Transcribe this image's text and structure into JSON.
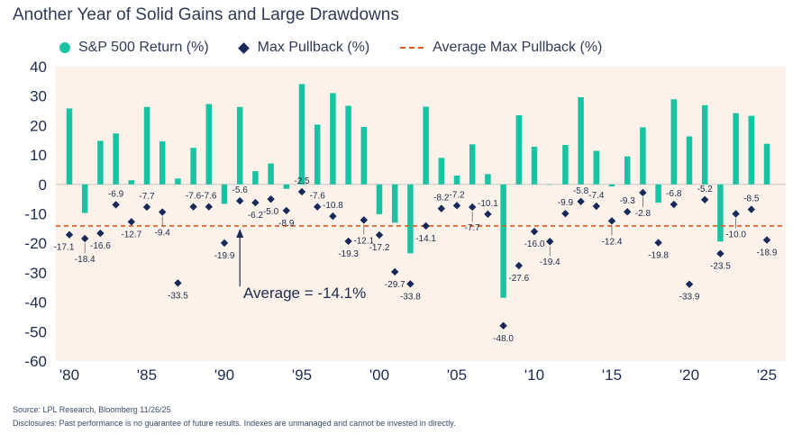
{
  "title": "Another Year of Solid Gains and Large Drawdowns",
  "legend": {
    "returns": "S&P 500 Return (%)",
    "pullback": "Max Pullback (%)",
    "average": "Average Max Pullback (%)"
  },
  "source": "Source: LPL Research, Bloomberg 11/26/25",
  "disclosure": "Disclosures: Past performance is no guarantee of future results. Indexes are unmanaged and cannot be invested in directly.",
  "colors": {
    "bar": "#17c3a2",
    "diamond": "#17285a",
    "average": "#e05a1c",
    "plot_bg": "#fdf2e9"
  },
  "chart_data": {
    "type": "bar",
    "ylim": [
      -60,
      40
    ],
    "y_ticks": [
      40,
      30,
      20,
      10,
      0,
      -10,
      -20,
      -30,
      -40,
      -50,
      -60
    ],
    "x_tick_labels": [
      {
        "year": 1980,
        "label": "'80"
      },
      {
        "year": 1985,
        "label": "'85"
      },
      {
        "year": 1990,
        "label": "'90"
      },
      {
        "year": 1995,
        "label": "'95"
      },
      {
        "year": 2000,
        "label": "'00"
      },
      {
        "year": 2005,
        "label": "'05"
      },
      {
        "year": 2010,
        "label": "'10"
      },
      {
        "year": 2015,
        "label": "'15"
      },
      {
        "year": 2020,
        "label": "'20"
      },
      {
        "year": 2025,
        "label": "'25"
      }
    ],
    "years": [
      1980,
      1981,
      1982,
      1983,
      1984,
      1985,
      1986,
      1987,
      1988,
      1989,
      1990,
      1991,
      1992,
      1993,
      1994,
      1995,
      1996,
      1997,
      1998,
      1999,
      2000,
      2001,
      2002,
      2003,
      2004,
      2005,
      2006,
      2007,
      2008,
      2009,
      2010,
      2011,
      2012,
      2013,
      2014,
      2015,
      2016,
      2017,
      2018,
      2019,
      2020,
      2021,
      2022,
      2023,
      2024,
      2025
    ],
    "returns": [
      25.8,
      -9.7,
      14.8,
      17.3,
      1.4,
      26.3,
      14.6,
      2.0,
      12.4,
      27.3,
      -6.6,
      26.3,
      4.5,
      7.1,
      -1.5,
      34.1,
      20.3,
      31.0,
      26.7,
      19.5,
      -10.1,
      -13.0,
      -23.4,
      26.4,
      9.0,
      3.0,
      13.6,
      3.5,
      -38.5,
      23.5,
      12.8,
      0.0,
      13.4,
      29.6,
      11.4,
      -0.7,
      9.5,
      19.4,
      -6.2,
      28.9,
      16.3,
      26.9,
      -19.4,
      24.2,
      23.3,
      13.8
    ],
    "series": [
      {
        "name": "S&P 500 Return (%)",
        "ref": "returns"
      },
      {
        "name": "Max Pullback (%)",
        "ref": "pullback"
      }
    ],
    "pullback": [
      -17.1,
      -18.4,
      -16.6,
      -6.9,
      -12.7,
      -7.7,
      -9.4,
      -33.5,
      -7.6,
      -7.6,
      -19.9,
      -5.6,
      -6.2,
      -5.0,
      -8.9,
      -2.5,
      -7.6,
      -10.8,
      -19.3,
      -12.1,
      -17.2,
      -29.7,
      -33.8,
      -14.1,
      -8.2,
      -7.2,
      -7.7,
      -10.1,
      -48.0,
      -27.6,
      -16.0,
      -19.4,
      -9.9,
      -5.8,
      -7.4,
      -12.4,
      -9.3,
      -2.8,
      -19.8,
      -6.8,
      -33.9,
      -5.2,
      -23.5,
      -10.0,
      -8.5,
      -18.9
    ],
    "pullback_labels": [
      "-17.1",
      "-18.4",
      "-16.6",
      "-6.9",
      "-12.7",
      "-7.7",
      "-9.4",
      "-33.5",
      "-7.6",
      "-7.6",
      "-19.9",
      "-5.6",
      "-6.2",
      "-5.0",
      "-8.9",
      "-2.5",
      "-7.6",
      "-10.8",
      "-19.3",
      "-12.1",
      "-17.2",
      "-29.7",
      "-33.8",
      "-14.1",
      "-8.2",
      "-7.2",
      "-7.7",
      "-10.1",
      "-48.0",
      "-27.6",
      "-16.0",
      "-19.4",
      "-9.9",
      "-5.8",
      "-7.4",
      "-12.4",
      "-9.3",
      "-2.8",
      "-19.8",
      "-6.8",
      "-33.9",
      "-5.2",
      "-23.5",
      "-10.0",
      "-8.5",
      "-18.9"
    ],
    "average_pullback": -14.1,
    "annotation": {
      "text": "Average = -14.1%",
      "year": 1991
    }
  }
}
